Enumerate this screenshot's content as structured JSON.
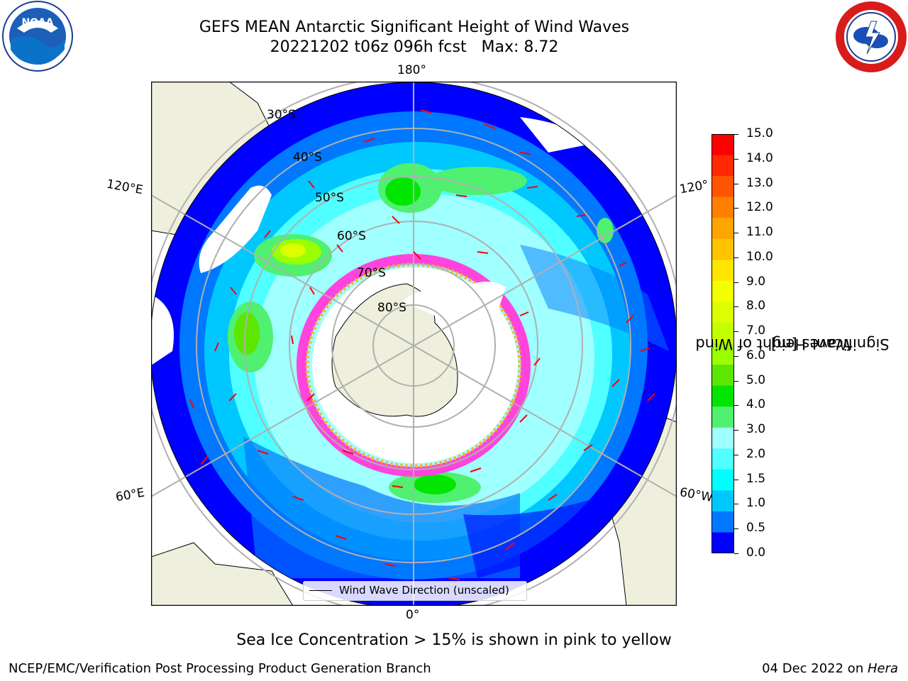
{
  "title_line1": "GEFS MEAN Antarctic Significant Height of Wind Waves",
  "title_line2": "20221202 t06z 096h fcst   Max: 8.72",
  "logos": {
    "left": "noaa-logo",
    "left_text": "NOAA",
    "right": "nws-logo"
  },
  "map": {
    "projection": "south-polar-stereographic",
    "lon_labels": {
      "top": "180°",
      "bottom": "0°",
      "upper_left": "120°E",
      "upper_right": "120°",
      "lower_left": "60°E",
      "lower_right": "60°W"
    },
    "lat_labels": [
      "30°S",
      "40°S",
      "50°S",
      "60°S",
      "70°S",
      "80°S"
    ],
    "legend_label": "Wind Wave Direction (unscaled)"
  },
  "colorbar": {
    "title_line1": "Significant Height of Wind",
    "title_line2": "Waves [m]",
    "ticks": [
      "15.0",
      "14.0",
      "13.0",
      "12.0",
      "11.0",
      "10.0",
      "9.0",
      "8.0",
      "7.0",
      "6.0",
      "5.0",
      "4.0",
      "3.0",
      "2.0",
      "1.5",
      "1.0",
      "0.5",
      "0.0"
    ],
    "colors_top_down": [
      "#ff0000",
      "#ff2a00",
      "#ff5500",
      "#ff8000",
      "#ffa500",
      "#ffc300",
      "#ffe600",
      "#f4ff00",
      "#dcff00",
      "#c4ff00",
      "#9aff00",
      "#5ce600",
      "#00e600",
      "#50f070",
      "#a0ffff",
      "#50ffff",
      "#00ffff",
      "#00c8ff",
      "#0078ff",
      "#0000ff"
    ]
  },
  "ice_note": "Sea Ice Concentration > 15% is shown in pink to yellow",
  "footer_left": "NCEP/EMC/Verification Post Processing Product Generation Branch",
  "footer_right_date": "04 Dec 2022 on ",
  "footer_right_machine": "Hera"
}
